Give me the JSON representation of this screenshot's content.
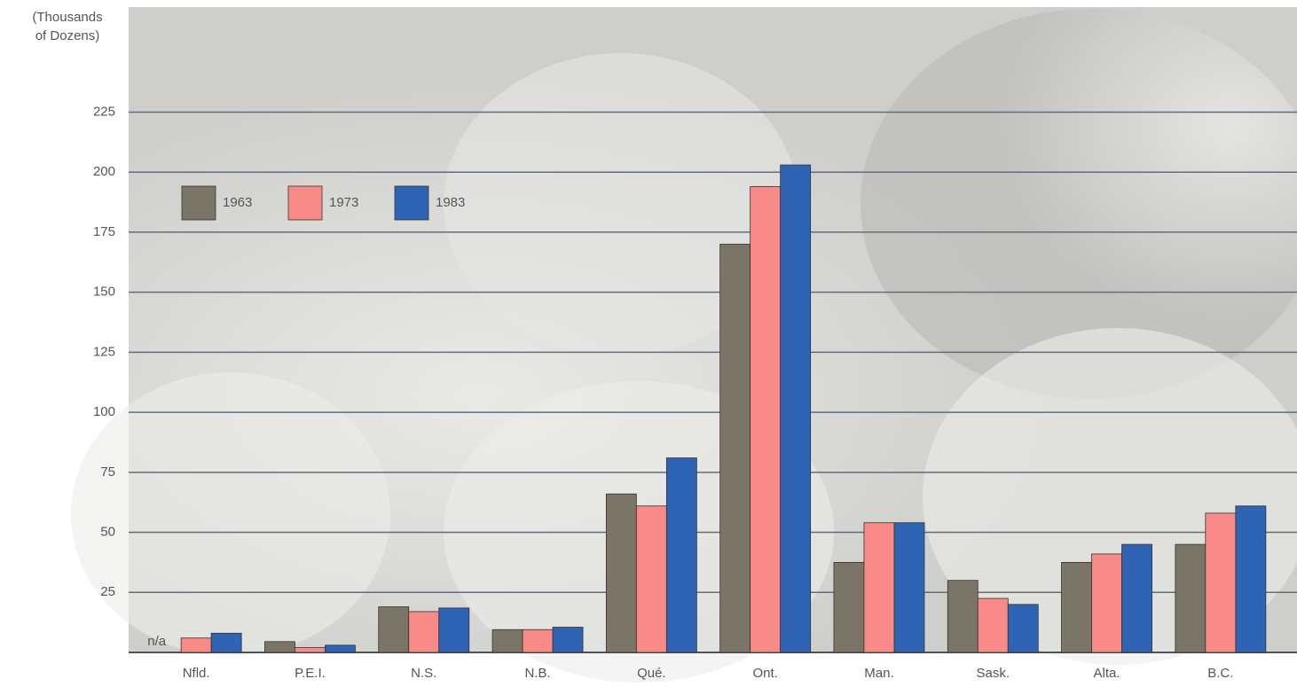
{
  "chart_data": {
    "type": "bar",
    "y_label_lines": [
      "(Thousands",
      "of Dozens)"
    ],
    "categories": [
      "Nfld.",
      "P.E.I.",
      "N.S.",
      "N.B.",
      "Qué.",
      "Ont.",
      "Man.",
      "Sask.",
      "Alta.",
      "B.C."
    ],
    "series": [
      {
        "name": "1963",
        "color": "#7b7568",
        "values": [
          null,
          4.5,
          19,
          9.5,
          66,
          170,
          37.5,
          30,
          37.5,
          45
        ]
      },
      {
        "name": "1973",
        "color": "#f88b87",
        "values": [
          6,
          2,
          17,
          9.5,
          61,
          194,
          54,
          22.5,
          41,
          58
        ]
      },
      {
        "name": "1983",
        "color": "#2f63b3",
        "values": [
          8,
          3,
          18.5,
          10.5,
          81,
          203,
          54,
          20,
          45,
          61
        ]
      }
    ],
    "annotations": [
      {
        "text": "n/a",
        "category": 0,
        "series": 0
      }
    ],
    "ylim": [
      0,
      268
    ],
    "yticks": [
      25,
      50,
      75,
      100,
      125,
      150,
      175,
      200,
      225
    ],
    "grid": true,
    "legend": "top-left"
  }
}
